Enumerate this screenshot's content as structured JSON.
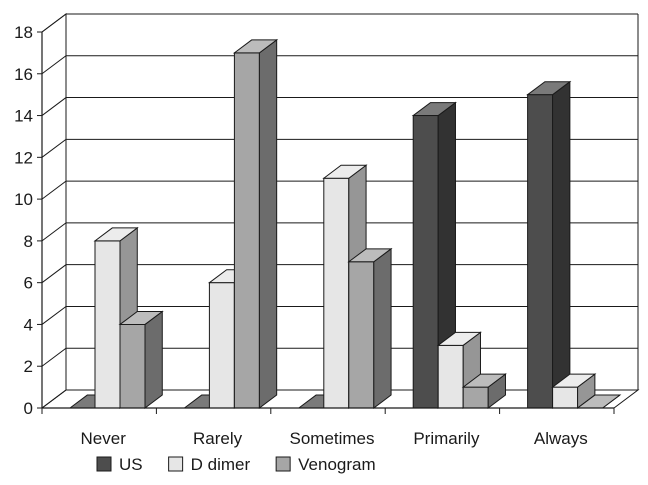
{
  "chart_data": {
    "type": "bar",
    "title": "",
    "xlabel": "",
    "ylabel": "",
    "categories": [
      "Never",
      "Rarely",
      "Sometimes",
      "Primarily",
      "Always"
    ],
    "series": [
      {
        "name": "US",
        "values": [
          0,
          0,
          0,
          14,
          15
        ],
        "color": "#4d4d4d"
      },
      {
        "name": "D dimer",
        "values": [
          8,
          6,
          11,
          3,
          1
        ],
        "color": "#e6e6e6"
      },
      {
        "name": "Venogram",
        "values": [
          4,
          17,
          7,
          1,
          0
        ],
        "color": "#a6a6a6"
      }
    ],
    "ylim": [
      0,
      18
    ],
    "yticks": [
      0,
      2,
      4,
      6,
      8,
      10,
      12,
      14,
      16,
      18
    ],
    "grid": true,
    "legend_position": "bottom-left",
    "style": "3d-clustered-column"
  }
}
